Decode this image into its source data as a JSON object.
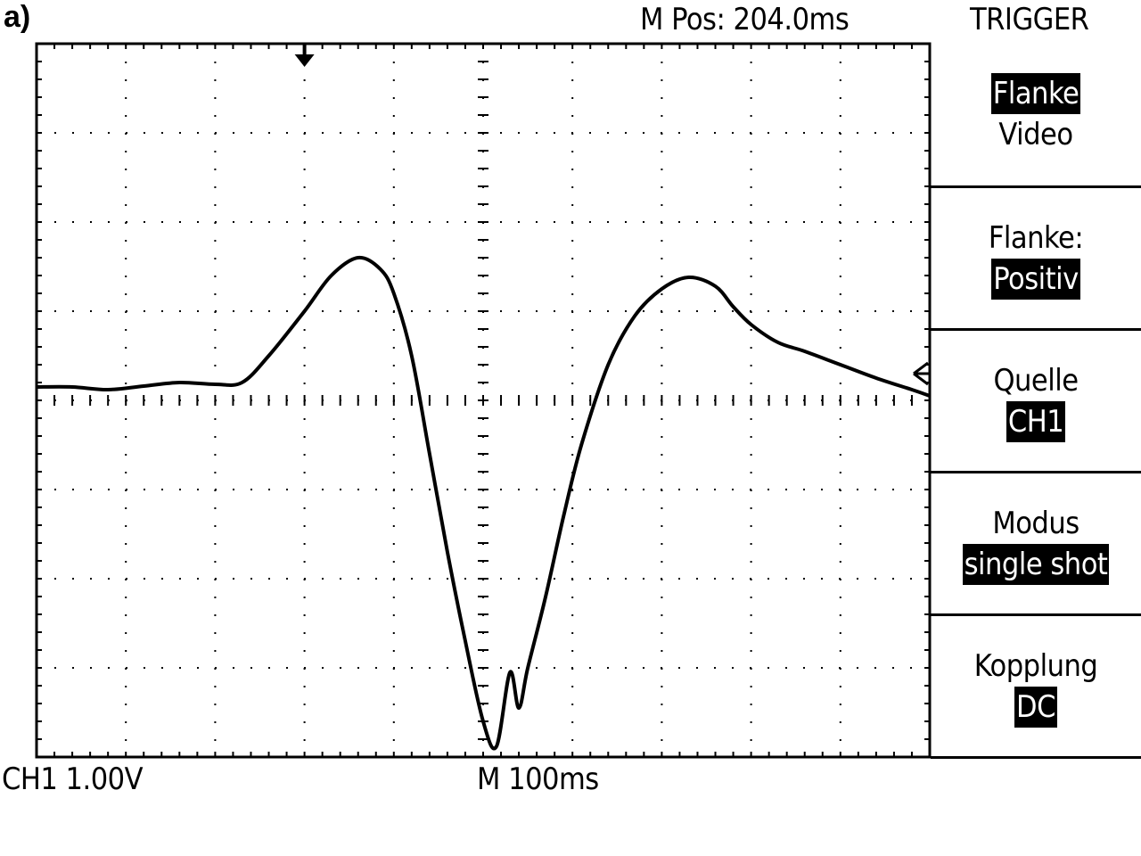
{
  "panel_label": "a)",
  "header": {
    "position_readout": "M Pos: 204.0ms",
    "menu_title": "TRIGGER"
  },
  "footer": {
    "channel_scale": "CH1 1.00V",
    "timebase": "M 100ms"
  },
  "menu": [
    {
      "lines": [
        {
          "text": "Flanke",
          "highlighted": true
        },
        {
          "text": "Video",
          "highlighted": false
        }
      ]
    },
    {
      "lines": [
        {
          "text": "Flanke:",
          "highlighted": false
        },
        {
          "text": "Positiv",
          "highlighted": true
        }
      ]
    },
    {
      "lines": [
        {
          "text": "Quelle",
          "highlighted": false
        },
        {
          "text": "CH1",
          "highlighted": true
        }
      ]
    },
    {
      "lines": [
        {
          "text": "Modus",
          "highlighted": false
        },
        {
          "text": "single shot",
          "highlighted": true
        }
      ]
    },
    {
      "lines": [
        {
          "text": "Kopplung",
          "highlighted": false
        },
        {
          "text": "DC",
          "highlighted": true
        }
      ]
    }
  ],
  "chart_data": {
    "type": "line",
    "grid": true,
    "x_divisions": 10,
    "y_divisions": 8,
    "x_unit": "div",
    "y_unit": "div",
    "xlim": [
      0,
      10
    ],
    "ylim": [
      -4,
      4
    ],
    "series": [
      {
        "x": [
          0,
          0.4,
          0.8,
          1.2,
          1.6,
          2.0,
          2.3,
          2.6,
          3.0,
          3.3,
          3.6,
          3.85,
          4.0,
          4.2,
          4.4,
          4.6,
          4.8,
          5.0,
          5.15,
          5.3,
          5.4,
          5.5,
          5.7,
          5.9,
          6.1,
          6.4,
          6.7,
          7.0,
          7.3,
          7.6,
          7.8,
          8.0,
          8.3,
          8.6,
          9.0,
          9.4,
          9.8,
          10.0
        ],
        "y": [
          0.15,
          0.15,
          0.12,
          0.16,
          0.2,
          0.18,
          0.2,
          0.5,
          1.0,
          1.4,
          1.6,
          1.47,
          1.2,
          0.5,
          -0.6,
          -1.7,
          -2.7,
          -3.6,
          -3.88,
          -3.05,
          -3.45,
          -3.0,
          -2.2,
          -1.3,
          -0.5,
          0.4,
          0.95,
          1.25,
          1.38,
          1.28,
          1.05,
          0.85,
          0.65,
          0.55,
          0.4,
          0.25,
          0.12,
          0.05
        ]
      }
    ],
    "trigger_position_div": 3.0,
    "trigger_level_div": 0.3
  }
}
